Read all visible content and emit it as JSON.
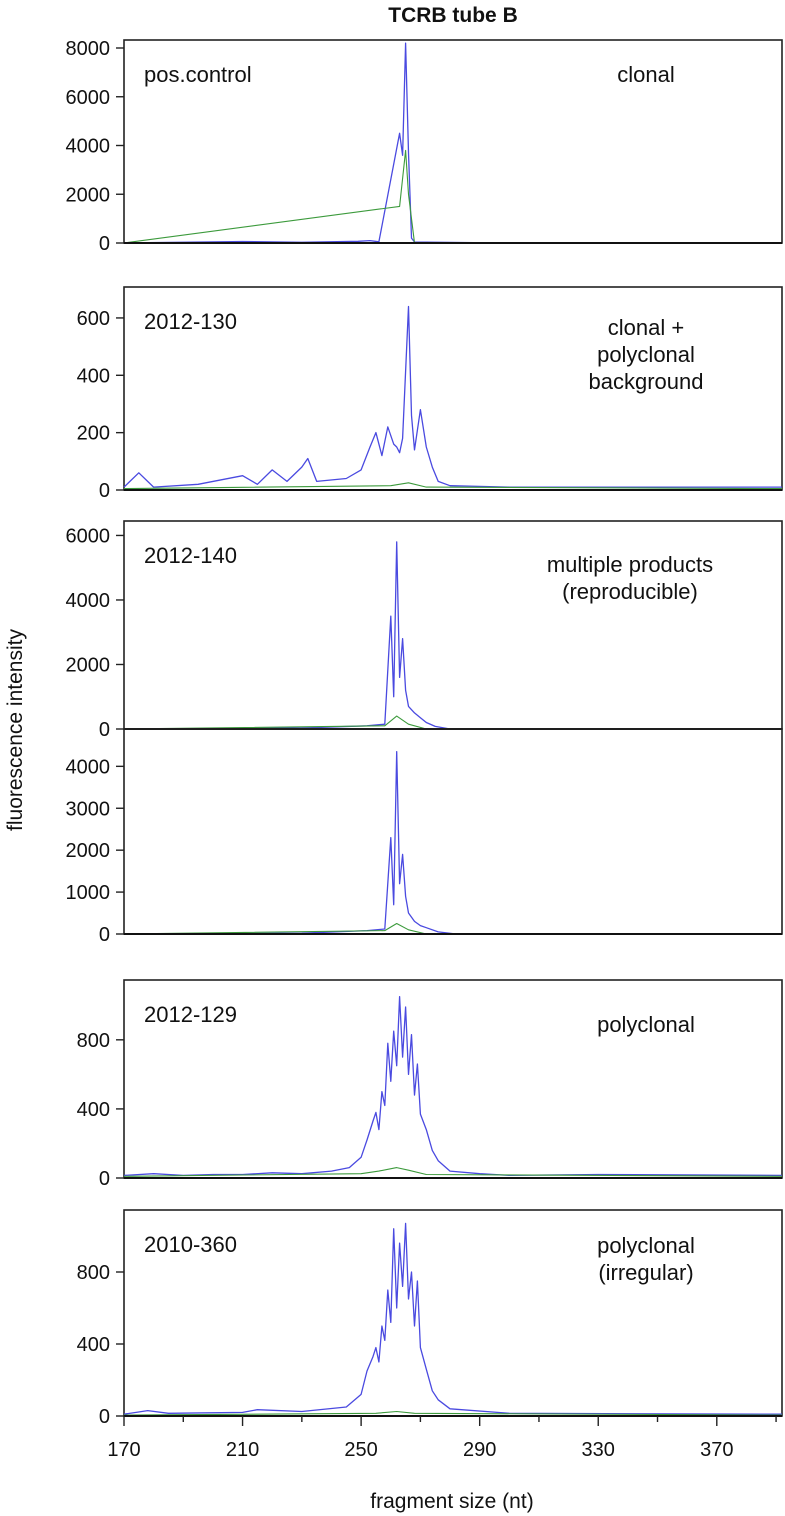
{
  "chart_data": {
    "type": "line",
    "title": "TCRB tube B",
    "xlabel": "fragment size (nt)",
    "ylabel": "fluorescence intensity",
    "xlim": [
      170,
      392
    ],
    "xticks": [
      170,
      210,
      250,
      290,
      330,
      370
    ],
    "grid": false,
    "colors": {
      "signal": "#4a4ae0",
      "secondary": "#3c9a3c",
      "baseline": "#111111",
      "frame": "#222222"
    },
    "panels": [
      {
        "label": "pos.control",
        "note": [
          "clonal"
        ],
        "ylim": [
          0,
          8000
        ],
        "yticks": [
          0,
          2000,
          4000,
          6000,
          8000
        ],
        "series": [
          {
            "color": "#4a4ae0",
            "points": [
              [
                170,
                0
              ],
              [
                210,
                60
              ],
              [
                230,
                30
              ],
              [
                249,
                70
              ],
              [
                253,
                100
              ],
              [
                256,
                50
              ],
              [
                263,
                4500
              ],
              [
                264,
                3600
              ],
              [
                265,
                8200
              ],
              [
                266,
                3700
              ],
              [
                267,
                200
              ],
              [
                268,
                40
              ],
              [
                300,
                0
              ],
              [
                392,
                0
              ]
            ]
          },
          {
            "color": "#3c9a3c",
            "points": [
              [
                170,
                0
              ],
              [
                263,
                1500
              ],
              [
                265,
                3800
              ],
              [
                266,
                2000
              ],
              [
                268,
                0
              ],
              [
                392,
                0
              ]
            ]
          }
        ]
      },
      {
        "label": "2012-130",
        "note": [
          "clonal +",
          "polyclonal",
          "background"
        ],
        "ylim": [
          0,
          680
        ],
        "yticks": [
          0,
          200,
          400,
          600
        ],
        "series": [
          {
            "color": "#4a4ae0",
            "points": [
              [
                170,
                10
              ],
              [
                175,
                60
              ],
              [
                180,
                10
              ],
              [
                195,
                20
              ],
              [
                210,
                50
              ],
              [
                215,
                20
              ],
              [
                220,
                70
              ],
              [
                225,
                30
              ],
              [
                230,
                80
              ],
              [
                232,
                110
              ],
              [
                235,
                30
              ],
              [
                245,
                40
              ],
              [
                250,
                70
              ],
              [
                253,
                150
              ],
              [
                255,
                200
              ],
              [
                257,
                120
              ],
              [
                259,
                220
              ],
              [
                261,
                160
              ],
              [
                262,
                150
              ],
              [
                263,
                130
              ],
              [
                264,
                180
              ],
              [
                266,
                640
              ],
              [
                267,
                260
              ],
              [
                268,
                140
              ],
              [
                270,
                280
              ],
              [
                272,
                150
              ],
              [
                274,
                80
              ],
              [
                276,
                30
              ],
              [
                280,
                15
              ],
              [
                300,
                10
              ],
              [
                392,
                10
              ]
            ]
          },
          {
            "color": "#3c9a3c",
            "points": [
              [
                170,
                5
              ],
              [
                260,
                15
              ],
              [
                266,
                25
              ],
              [
                272,
                10
              ],
              [
                392,
                5
              ]
            ]
          }
        ]
      },
      {
        "label": "2012-140",
        "note": [
          "multiple products",
          "(reproducible)"
        ],
        "ylim": [
          0,
          6200
        ],
        "yticks": [
          0,
          2000,
          4000,
          6000
        ],
        "series": [
          {
            "color": "#4a4ae0",
            "points": [
              [
                170,
                0
              ],
              [
                230,
                30
              ],
              [
                252,
                100
              ],
              [
                258,
                150
              ],
              [
                260,
                3500
              ],
              [
                261,
                1000
              ],
              [
                262,
                5800
              ],
              [
                263,
                1600
              ],
              [
                264,
                2800
              ],
              [
                265,
                1200
              ],
              [
                266,
                700
              ],
              [
                268,
                500
              ],
              [
                270,
                350
              ],
              [
                272,
                200
              ],
              [
                275,
                80
              ],
              [
                280,
                0
              ],
              [
                392,
                0
              ]
            ]
          },
          {
            "color": "#3c9a3c",
            "points": [
              [
                170,
                0
              ],
              [
                258,
                100
              ],
              [
                262,
                400
              ],
              [
                266,
                150
              ],
              [
                272,
                0
              ],
              [
                392,
                0
              ]
            ]
          }
        ]
      },
      {
        "label": "",
        "note": [],
        "ylim": [
          0,
          4700
        ],
        "yticks": [
          0,
          1000,
          2000,
          3000,
          4000
        ],
        "series": [
          {
            "color": "#4a4ae0",
            "points": [
              [
                170,
                0
              ],
              [
                230,
                20
              ],
              [
                252,
                80
              ],
              [
                258,
                120
              ],
              [
                260,
                2300
              ],
              [
                261,
                700
              ],
              [
                262,
                4350
              ],
              [
                263,
                1200
              ],
              [
                264,
                1900
              ],
              [
                265,
                900
              ],
              [
                266,
                500
              ],
              [
                268,
                300
              ],
              [
                270,
                200
              ],
              [
                272,
                150
              ],
              [
                276,
                50
              ],
              [
                282,
                0
              ],
              [
                392,
                0
              ]
            ]
          },
          {
            "color": "#3c9a3c",
            "points": [
              [
                170,
                0
              ],
              [
                258,
                80
              ],
              [
                262,
                250
              ],
              [
                266,
                100
              ],
              [
                272,
                0
              ],
              [
                392,
                0
              ]
            ]
          }
        ]
      },
      {
        "label": "2012-129",
        "note": [
          "polyclonal"
        ],
        "ylim": [
          0,
          1100
        ],
        "yticks": [
          0,
          400,
          800
        ],
        "series": [
          {
            "color": "#4a4ae0",
            "points": [
              [
                170,
                15
              ],
              [
                180,
                25
              ],
              [
                190,
                15
              ],
              [
                200,
                20
              ],
              [
                210,
                20
              ],
              [
                220,
                30
              ],
              [
                230,
                25
              ],
              [
                240,
                40
              ],
              [
                246,
                60
              ],
              [
                250,
                120
              ],
              [
                252,
                220
              ],
              [
                254,
                330
              ],
              [
                255,
                380
              ],
              [
                256,
                280
              ],
              [
                257,
                500
              ],
              [
                258,
                420
              ],
              [
                259,
                780
              ],
              [
                260,
                560
              ],
              [
                261,
                850
              ],
              [
                262,
                650
              ],
              [
                263,
                1050
              ],
              [
                264,
                700
              ],
              [
                265,
                990
              ],
              [
                266,
                600
              ],
              [
                267,
                830
              ],
              [
                268,
                480
              ],
              [
                269,
                660
              ],
              [
                270,
                370
              ],
              [
                272,
                280
              ],
              [
                274,
                160
              ],
              [
                276,
                100
              ],
              [
                280,
                40
              ],
              [
                290,
                25
              ],
              [
                300,
                15
              ],
              [
                330,
                20
              ],
              [
                392,
                15
              ]
            ]
          },
          {
            "color": "#3c9a3c",
            "points": [
              [
                170,
                10
              ],
              [
                250,
                25
              ],
              [
                256,
                40
              ],
              [
                262,
                60
              ],
              [
                266,
                45
              ],
              [
                272,
                20
              ],
              [
                392,
                10
              ]
            ]
          }
        ]
      },
      {
        "label": "2010-360",
        "note": [
          "polyclonal",
          "(irregular)"
        ],
        "ylim": [
          0,
          1100
        ],
        "yticks": [
          0,
          400,
          800
        ],
        "series": [
          {
            "color": "#4a4ae0",
            "points": [
              [
                170,
                10
              ],
              [
                178,
                30
              ],
              [
                185,
                15
              ],
              [
                210,
                20
              ],
              [
                215,
                35
              ],
              [
                230,
                25
              ],
              [
                245,
                50
              ],
              [
                250,
                120
              ],
              [
                252,
                250
              ],
              [
                254,
                330
              ],
              [
                255,
                380
              ],
              [
                256,
                300
              ],
              [
                257,
                500
              ],
              [
                258,
                420
              ],
              [
                259,
                700
              ],
              [
                260,
                520
              ],
              [
                261,
                1040
              ],
              [
                262,
                600
              ],
              [
                263,
                960
              ],
              [
                264,
                720
              ],
              [
                265,
                1070
              ],
              [
                266,
                650
              ],
              [
                267,
                800
              ],
              [
                268,
                500
              ],
              [
                269,
                750
              ],
              [
                270,
                380
              ],
              [
                272,
                260
              ],
              [
                274,
                140
              ],
              [
                276,
                90
              ],
              [
                280,
                40
              ],
              [
                300,
                15
              ],
              [
                392,
                10
              ]
            ]
          },
          {
            "color": "#3c9a3c",
            "points": [
              [
                170,
                5
              ],
              [
                255,
                15
              ],
              [
                262,
                25
              ],
              [
                268,
                15
              ],
              [
                392,
                5
              ]
            ]
          }
        ]
      }
    ]
  }
}
